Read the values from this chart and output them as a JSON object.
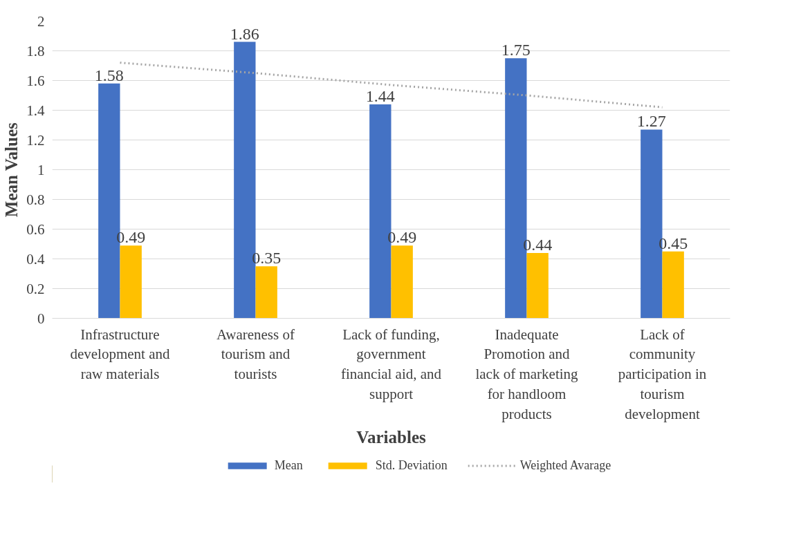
{
  "chart_data": {
    "type": "bar",
    "xlabel": "Variables",
    "ylabel": "Mean Values",
    "categories": [
      "Infrastructure\ndevelopment and\nraw materials",
      "Awareness of\ntourism and\ntourists",
      "Lack of funding,\ngovernment\nfinancial aid, and\nsupport",
      "Inadequate\nPromotion and\nlack of marketing\nfor handloom\nproducts",
      "Lack of\ncommunity\nparticipation in\ntourism\ndevelopment"
    ],
    "series": [
      {
        "name": "Mean",
        "color": "#4472c4",
        "values": [
          1.58,
          1.86,
          1.44,
          1.75,
          1.27
        ],
        "value_labels": [
          "1.58",
          "1.86",
          "1.44",
          "1.75",
          "1.27"
        ]
      },
      {
        "name": "Std. Deviation",
        "color": "#ffc000",
        "values": [
          0.49,
          0.35,
          0.49,
          0.44,
          0.45
        ],
        "value_labels": [
          "0.49",
          "0.35",
          "0.49",
          "0.44",
          "0.45"
        ]
      },
      {
        "name": "Weighted Avarage",
        "type": "line",
        "line_style": "dotted",
        "color": "#a5a5a5",
        "values": [
          1.72,
          1.65,
          1.57,
          1.5,
          1.42
        ]
      }
    ],
    "ylim": [
      0,
      2
    ],
    "yticks": [
      0,
      0.2,
      0.4,
      0.6,
      0.8,
      1,
      1.2,
      1.4,
      1.6,
      1.8,
      2
    ],
    "grid": "y",
    "legend": "bottom"
  }
}
